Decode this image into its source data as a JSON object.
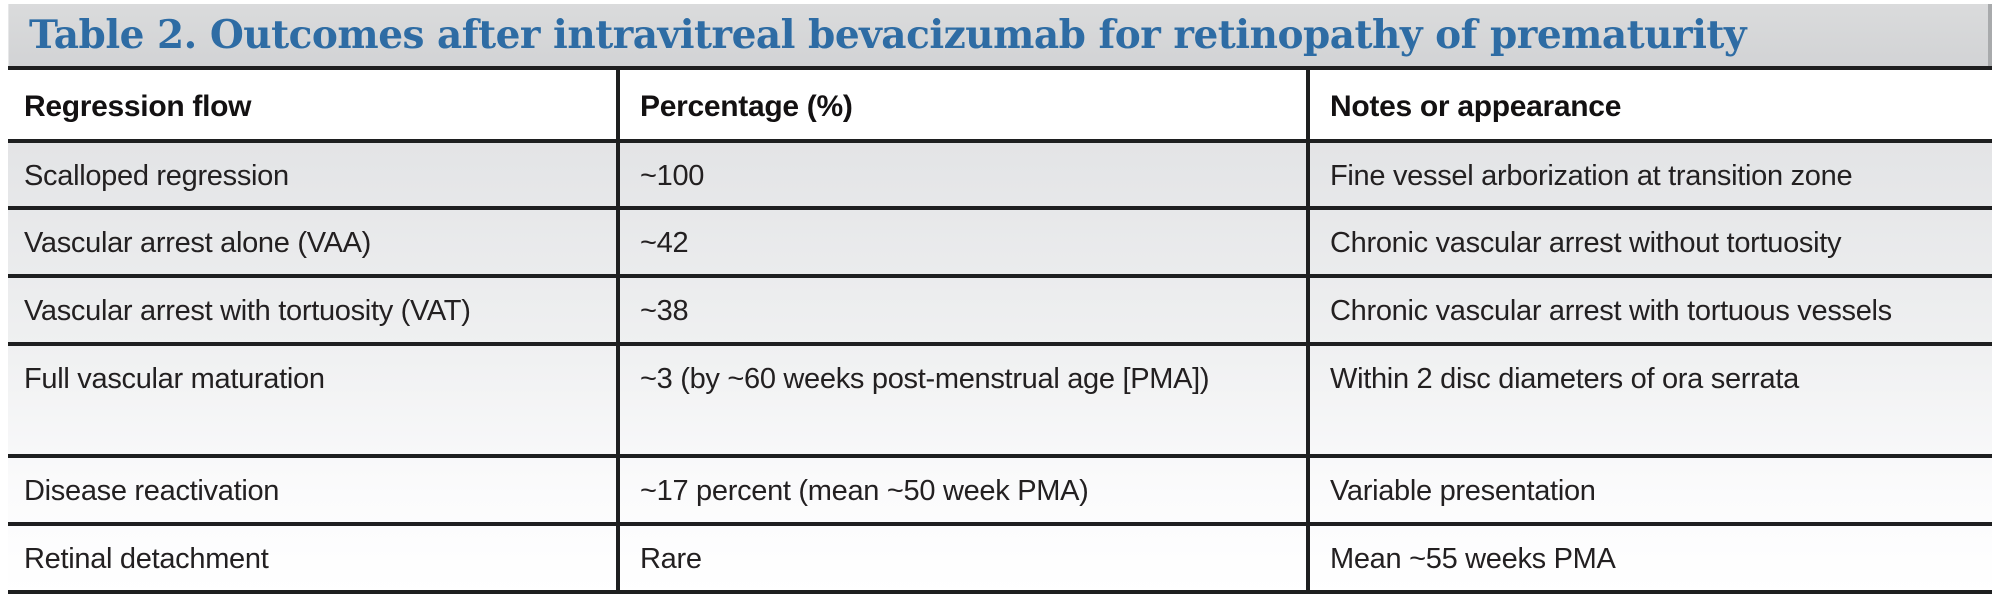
{
  "header": {
    "title": "Table 2. Outcomes after intravitreal bevacizumab for retinopathy of prematurity"
  },
  "table": {
    "columns": [
      "Regression flow",
      "Percentage (%)",
      "Notes or appearance"
    ],
    "rows": [
      {
        "flow": "Scalloped regression",
        "percentage": "~100",
        "notes": "Fine vessel arborization at transition zone"
      },
      {
        "flow": "Vascular arrest alone (VAA)",
        "percentage": "~42",
        "notes": "Chronic vascular arrest without tortuosity"
      },
      {
        "flow": "Vascular arrest with tortuosity (VAT)",
        "percentage": "~38",
        "notes": "Chronic vascular arrest with tortuous vessels"
      },
      {
        "flow": "Full vascular maturation",
        "percentage": "~3 (by ~60 weeks post-menstrual age [PMA])",
        "notes": "Within 2 disc diameters of ora serrata"
      },
      {
        "flow": "Disease reactivation",
        "percentage": "~17 percent (mean ~50 week PMA)",
        "notes": "Variable presentation"
      },
      {
        "flow": "Retinal detachment",
        "percentage": "Rare",
        "notes": "Mean ~55 weeks PMA"
      }
    ]
  },
  "colors": {
    "title_text": "#2e6ca4",
    "title_bar_bg": "#d6d7d8",
    "title_bar_edge": "#a8aaac",
    "rule": "#1e1f20",
    "body_text": "#232021",
    "body_gradient_top": "#e3e4e6",
    "body_gradient_bottom": "#ffffff",
    "header_row_bg": "#ffffff"
  }
}
